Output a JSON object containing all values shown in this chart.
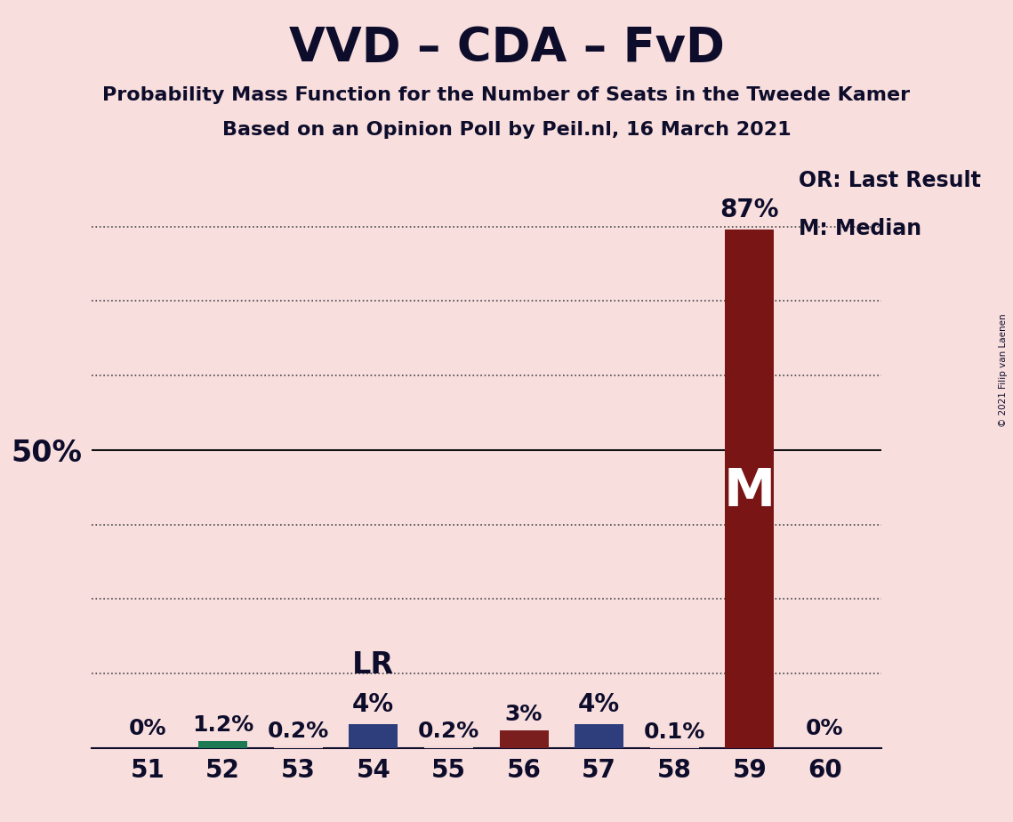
{
  "title": "VVD – CDA – FvD",
  "subtitle1": "Probability Mass Function for the Number of Seats in the Tweede Kamer",
  "subtitle2": "Based on an Opinion Poll by Peil.nl, 16 March 2021",
  "copyright": "© 2021 Filip van Laenen",
  "seats": [
    51,
    52,
    53,
    54,
    55,
    56,
    57,
    58,
    59,
    60
  ],
  "values": [
    0.0,
    1.2,
    0.2,
    4.0,
    0.2,
    3.0,
    4.0,
    0.1,
    87.0,
    0.0
  ],
  "labels": [
    "0%",
    "1.2%",
    "0.2%",
    "4%",
    "0.2%",
    "3%",
    "4%",
    "0.1%",
    "87%",
    "0%"
  ],
  "bar_colors": [
    "#f4d4d4",
    "#1e7a52",
    "#f4d4d4",
    "#2e3d7c",
    "#f4d4d4",
    "#7a1e1e",
    "#2e3d7c",
    "#f4d4d4",
    "#7a1515",
    "#f4d4d4"
  ],
  "background_color": "#f9dede",
  "plot_bg_color": "#f9dede",
  "title_color": "#0d0d2b",
  "y_max": 100,
  "legend_or_label": "OR: Last Result",
  "legend_m_label": "M: Median",
  "lr_annotation_seat": 54,
  "lr_annotation_text": "LR",
  "m_annotation_seat": 59,
  "m_annotation_text": "M",
  "dotted_gridlines": [
    12.5,
    25.0,
    37.5,
    62.5,
    75.0,
    87.5
  ],
  "solid_gridline": 50.0
}
